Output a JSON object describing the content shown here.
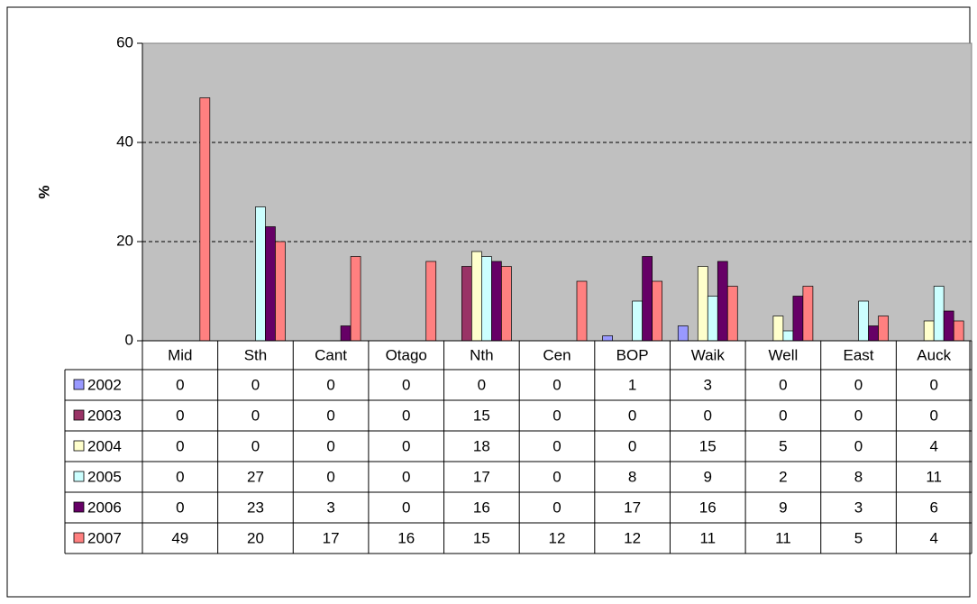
{
  "chart_data": {
    "type": "bar",
    "y_label": "%",
    "categories": [
      "Mid",
      "Sth",
      "Cant",
      "Otago",
      "Nth",
      "Cen",
      "BOP",
      "Waik",
      "Well",
      "East",
      "Auck"
    ],
    "series": [
      {
        "name": "2002",
        "color": "#9999ff",
        "values": [
          0,
          0,
          0,
          0,
          0,
          0,
          1,
          3,
          0,
          0,
          0
        ]
      },
      {
        "name": "2003",
        "color": "#993366",
        "values": [
          0,
          0,
          0,
          0,
          15,
          0,
          0,
          0,
          0,
          0,
          0
        ]
      },
      {
        "name": "2004",
        "color": "#ffffcc",
        "values": [
          0,
          0,
          0,
          0,
          18,
          0,
          0,
          15,
          5,
          0,
          4
        ]
      },
      {
        "name": "2005",
        "color": "#ccffff",
        "values": [
          0,
          27,
          0,
          0,
          17,
          0,
          8,
          9,
          2,
          8,
          11
        ]
      },
      {
        "name": "2006",
        "color": "#660066",
        "values": [
          0,
          23,
          3,
          0,
          16,
          0,
          17,
          16,
          9,
          3,
          6
        ]
      },
      {
        "name": "2007",
        "color": "#ff8080",
        "values": [
          49,
          20,
          17,
          16,
          15,
          12,
          12,
          11,
          11,
          5,
          4
        ]
      }
    ],
    "ylim": [
      0,
      60
    ],
    "yticks": [
      0,
      20,
      40,
      60
    ],
    "grid": true,
    "plot_background": "#c0c0c0"
  }
}
